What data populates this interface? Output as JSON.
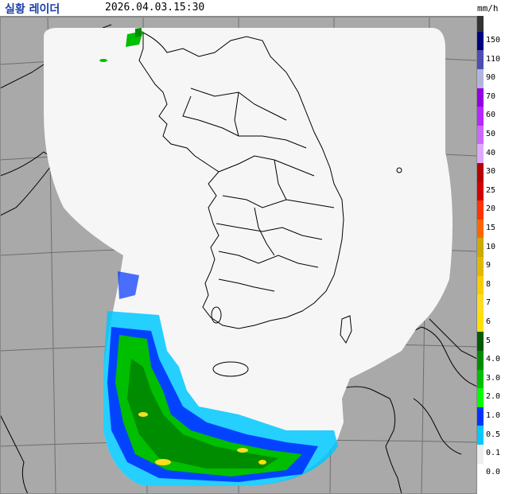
{
  "header": {
    "title": "실황 레이더",
    "timestamp": "2026.04.03.15:30",
    "unit": "mm/h"
  },
  "legend": {
    "entries": [
      {
        "label": "150",
        "color": "#333333"
      },
      {
        "label": "110",
        "color": "#00007f"
      },
      {
        "label": "90",
        "color": "#4c4eb1"
      },
      {
        "label": "70",
        "color": "#b3b4de"
      },
      {
        "label": "60",
        "color": "#9300e4"
      },
      {
        "label": "50",
        "color": "#b329ff"
      },
      {
        "label": "40",
        "color": "#c969ff"
      },
      {
        "label": "30",
        "color": "#e0a9ff"
      },
      {
        "label": "25",
        "color": "#b40000"
      },
      {
        "label": "20",
        "color": "#d20000"
      },
      {
        "label": "15",
        "color": "#ff3200"
      },
      {
        "label": "10",
        "color": "#ff6600"
      },
      {
        "label": "9",
        "color": "#ccaa00"
      },
      {
        "label": "8",
        "color": "#e0b900"
      },
      {
        "label": "7",
        "color": "#f9cd00"
      },
      {
        "label": "6",
        "color": "#ffdc1f"
      },
      {
        "label": "5",
        "color": "#ffe100"
      },
      {
        "label": "4.0",
        "color": "#005a00"
      },
      {
        "label": "3.0",
        "color": "#008c00"
      },
      {
        "label": "2.0",
        "color": "#00be00"
      },
      {
        "label": "1.0",
        "color": "#00ff00"
      },
      {
        "label": "0.5",
        "color": "#0033ff"
      },
      {
        "label": "0.1",
        "color": "#00c8ff"
      },
      {
        "label": "0.0",
        "color": "#eeeeee"
      }
    ]
  },
  "map": {
    "out_of_range_color": "#a9a9a9",
    "coverage_color": "#f6f6f6",
    "boundary_color": "#000000",
    "grid_color": "#6e6e6e"
  }
}
